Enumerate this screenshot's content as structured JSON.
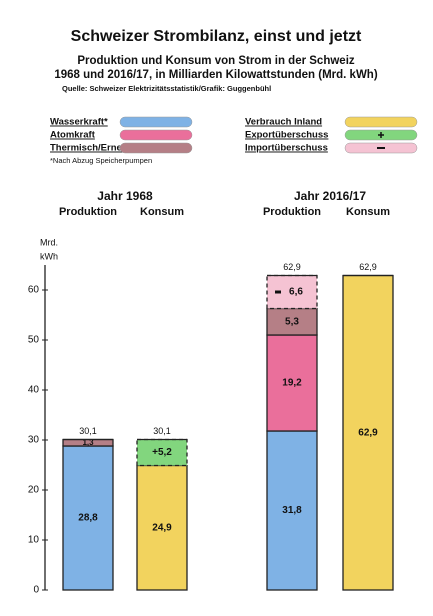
{
  "chart_data": {
    "type": "bar",
    "stacked": true,
    "title": "Schweizer Strombilanz, einst und jetzt",
    "subtitle": [
      "Produktion und  Konsum von Strom in der Schweiz",
      "1968 und 2016/17, in Milliarden Kilowattstunden (Mrd. kWh)"
    ],
    "source": "Quelle: Schweizer Elektrizitätsstatistik/Grafik: Guggenbühl",
    "footnote": "*Nach Abzug Speicherpumpen",
    "y_label": [
      "Mrd.",
      "kWh"
    ],
    "groups": [
      "Jahr 1968",
      "Jahr 2016/17"
    ],
    "categories": [
      "Produktion",
      "Konsum",
      "Produktion",
      "Konsum"
    ],
    "series": [
      {
        "name": "Wasserkraft*",
        "color": "#7fb2e5",
        "values": [
          28.8,
          null,
          31.8,
          null
        ],
        "value_labels": [
          "28,8",
          null,
          "31,8",
          null
        ]
      },
      {
        "name": "Atomkraft",
        "color": "#ea6f9b",
        "values": [
          null,
          null,
          19.2,
          null
        ],
        "value_labels": [
          null,
          null,
          "19,2",
          null
        ]
      },
      {
        "name": "Thermisch/Erneuerbar",
        "color": "#b57f86",
        "values": [
          1.3,
          null,
          5.3,
          null
        ],
        "value_labels": [
          "1,3",
          null,
          "5,3",
          null
        ]
      },
      {
        "name": "Verbrauch Inland",
        "color": "#f2d35e",
        "values": [
          null,
          24.9,
          null,
          62.9
        ],
        "value_labels": [
          null,
          "24,9",
          null,
          "62,9"
        ]
      },
      {
        "name": "Exportüberschuss",
        "color": "#82d67e",
        "values": [
          null,
          5.2,
          null,
          null
        ],
        "value_labels": [
          null,
          "+5,2",
          null,
          null
        ]
      },
      {
        "name": "Importüberschuss",
        "color": "#f5c3d3",
        "values": [
          null,
          null,
          6.6,
          null
        ],
        "value_labels": [
          null,
          null,
          "6,6",
          null
        ]
      }
    ],
    "totals": [
      30.1,
      30.1,
      62.9,
      62.9
    ],
    "total_labels": [
      "30,1",
      "30,1",
      "62,9",
      "62,9"
    ],
    "ylim": [
      0,
      65
    ],
    "yticks": [
      0,
      10,
      20,
      30,
      40,
      50,
      60
    ],
    "grid": false
  }
}
